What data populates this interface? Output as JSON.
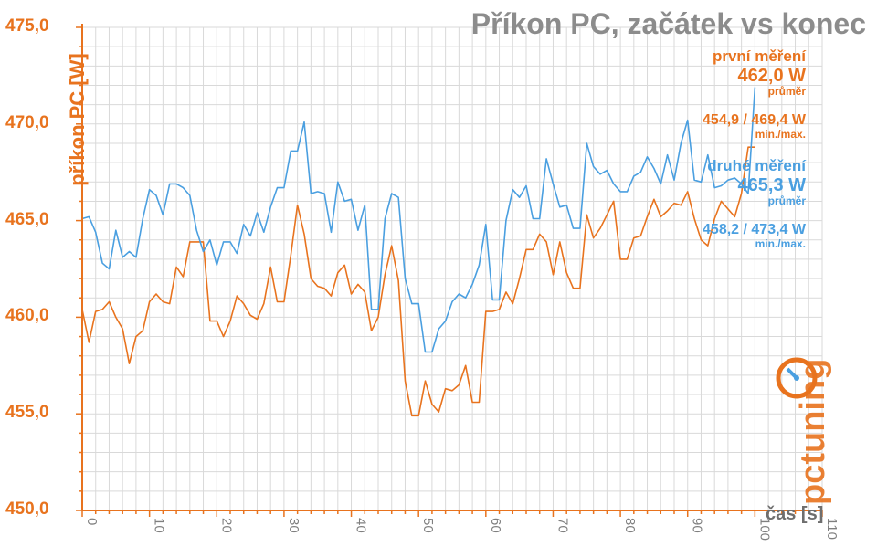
{
  "chart_data": {
    "type": "line",
    "title": "Příkon PC, začátek vs konec",
    "ylabel": "příkon PC [W]",
    "xlabel": "čas [s]",
    "ylim": [
      450,
      475
    ],
    "xlim": [
      0,
      110
    ],
    "y_ticks": [
      "450,0",
      "455,0",
      "460,0",
      "465,0",
      "470,0",
      "475,0"
    ],
    "x_ticks": [
      "0",
      "10",
      "20",
      "30",
      "40",
      "50",
      "60",
      "70",
      "80",
      "90",
      "100",
      "110"
    ],
    "grid": true,
    "series": [
      {
        "name": "první měření",
        "color": "#e8731e",
        "values": [
          460.4,
          458.7,
          460.3,
          460.4,
          460.8,
          460.0,
          459.4,
          457.6,
          459.0,
          459.3,
          460.8,
          461.2,
          460.8,
          460.7,
          462.6,
          462.1,
          463.9,
          463.9,
          463.9,
          459.8,
          459.8,
          459.0,
          459.8,
          461.1,
          460.7,
          460.1,
          459.9,
          460.7,
          462.6,
          460.8,
          460.8,
          463.2,
          465.8,
          464.3,
          462.0,
          461.6,
          461.5,
          461.1,
          462.3,
          462.7,
          461.2,
          461.7,
          461.3,
          459.3,
          460.0,
          462.2,
          463.7,
          461.9,
          456.7,
          454.9,
          454.9,
          456.7,
          455.5,
          455.1,
          456.3,
          456.2,
          456.5,
          457.5,
          455.6,
          455.6,
          460.3,
          460.3,
          460.4,
          461.3,
          460.7,
          462.0,
          463.5,
          463.5,
          464.3,
          463.9,
          462.2,
          463.9,
          462.3,
          461.5,
          461.5,
          465.3,
          464.1,
          464.6,
          465.3,
          466.0,
          463.0,
          463.0,
          464.1,
          464.2,
          465.2,
          466.1,
          465.2,
          465.5,
          465.9,
          465.8,
          466.5,
          465.1,
          464.0,
          463.7,
          465.1,
          466.0,
          465.6,
          465.2,
          466.4,
          468.8,
          468.8
        ]
      },
      {
        "name": "druhé měření",
        "color": "#4a9fe0",
        "values": [
          465.1,
          465.2,
          464.4,
          462.8,
          462.5,
          464.5,
          463.1,
          463.4,
          463.1,
          465.1,
          466.6,
          466.3,
          465.3,
          466.9,
          466.9,
          466.7,
          466.3,
          464.5,
          463.4,
          464.0,
          462.7,
          463.9,
          463.9,
          463.3,
          464.8,
          464.2,
          465.4,
          464.4,
          465.7,
          466.7,
          466.7,
          468.6,
          468.6,
          470.1,
          466.4,
          466.5,
          466.4,
          464.4,
          467.0,
          466.0,
          466.1,
          464.5,
          465.8,
          460.4,
          460.4,
          465.1,
          466.4,
          466.2,
          462.0,
          460.7,
          460.7,
          458.2,
          458.2,
          459.4,
          459.8,
          460.8,
          461.2,
          461.0,
          461.7,
          462.7,
          464.8,
          460.9,
          460.9,
          465.0,
          466.6,
          466.2,
          466.8,
          465.1,
          465.1,
          468.2,
          466.9,
          465.7,
          465.8,
          464.6,
          464.6,
          469.0,
          467.8,
          467.4,
          467.6,
          466.9,
          466.5,
          466.5,
          467.3,
          467.5,
          468.3,
          467.7,
          466.9,
          468.4,
          467.1,
          469.0,
          470.2,
          467.1,
          467.0,
          468.4,
          466.7,
          466.8,
          467.1,
          467.2,
          466.9,
          466.4,
          471.9
        ]
      }
    ],
    "legend": [
      {
        "name": "první měření",
        "mean": "462,0 W",
        "mean_label": "průměr",
        "minmax": "454,9 / 469,4 W",
        "minmax_label": "min./max.",
        "color": "#e8731e"
      },
      {
        "name": "druhé měření",
        "mean": "465,3 W",
        "mean_label": "průměr",
        "minmax": "458,2 / 473,4 W",
        "minmax_label": "min./max.",
        "color": "#4a9fe0"
      }
    ],
    "legend_position": "top-right"
  },
  "logo": {
    "text": "pctuning",
    "color": "#e8731e",
    "accent": "#4a9fe0"
  },
  "colors": {
    "axis": "#e8731e",
    "grid": "#d9d9d9",
    "xtick": "#7f7f7f"
  }
}
